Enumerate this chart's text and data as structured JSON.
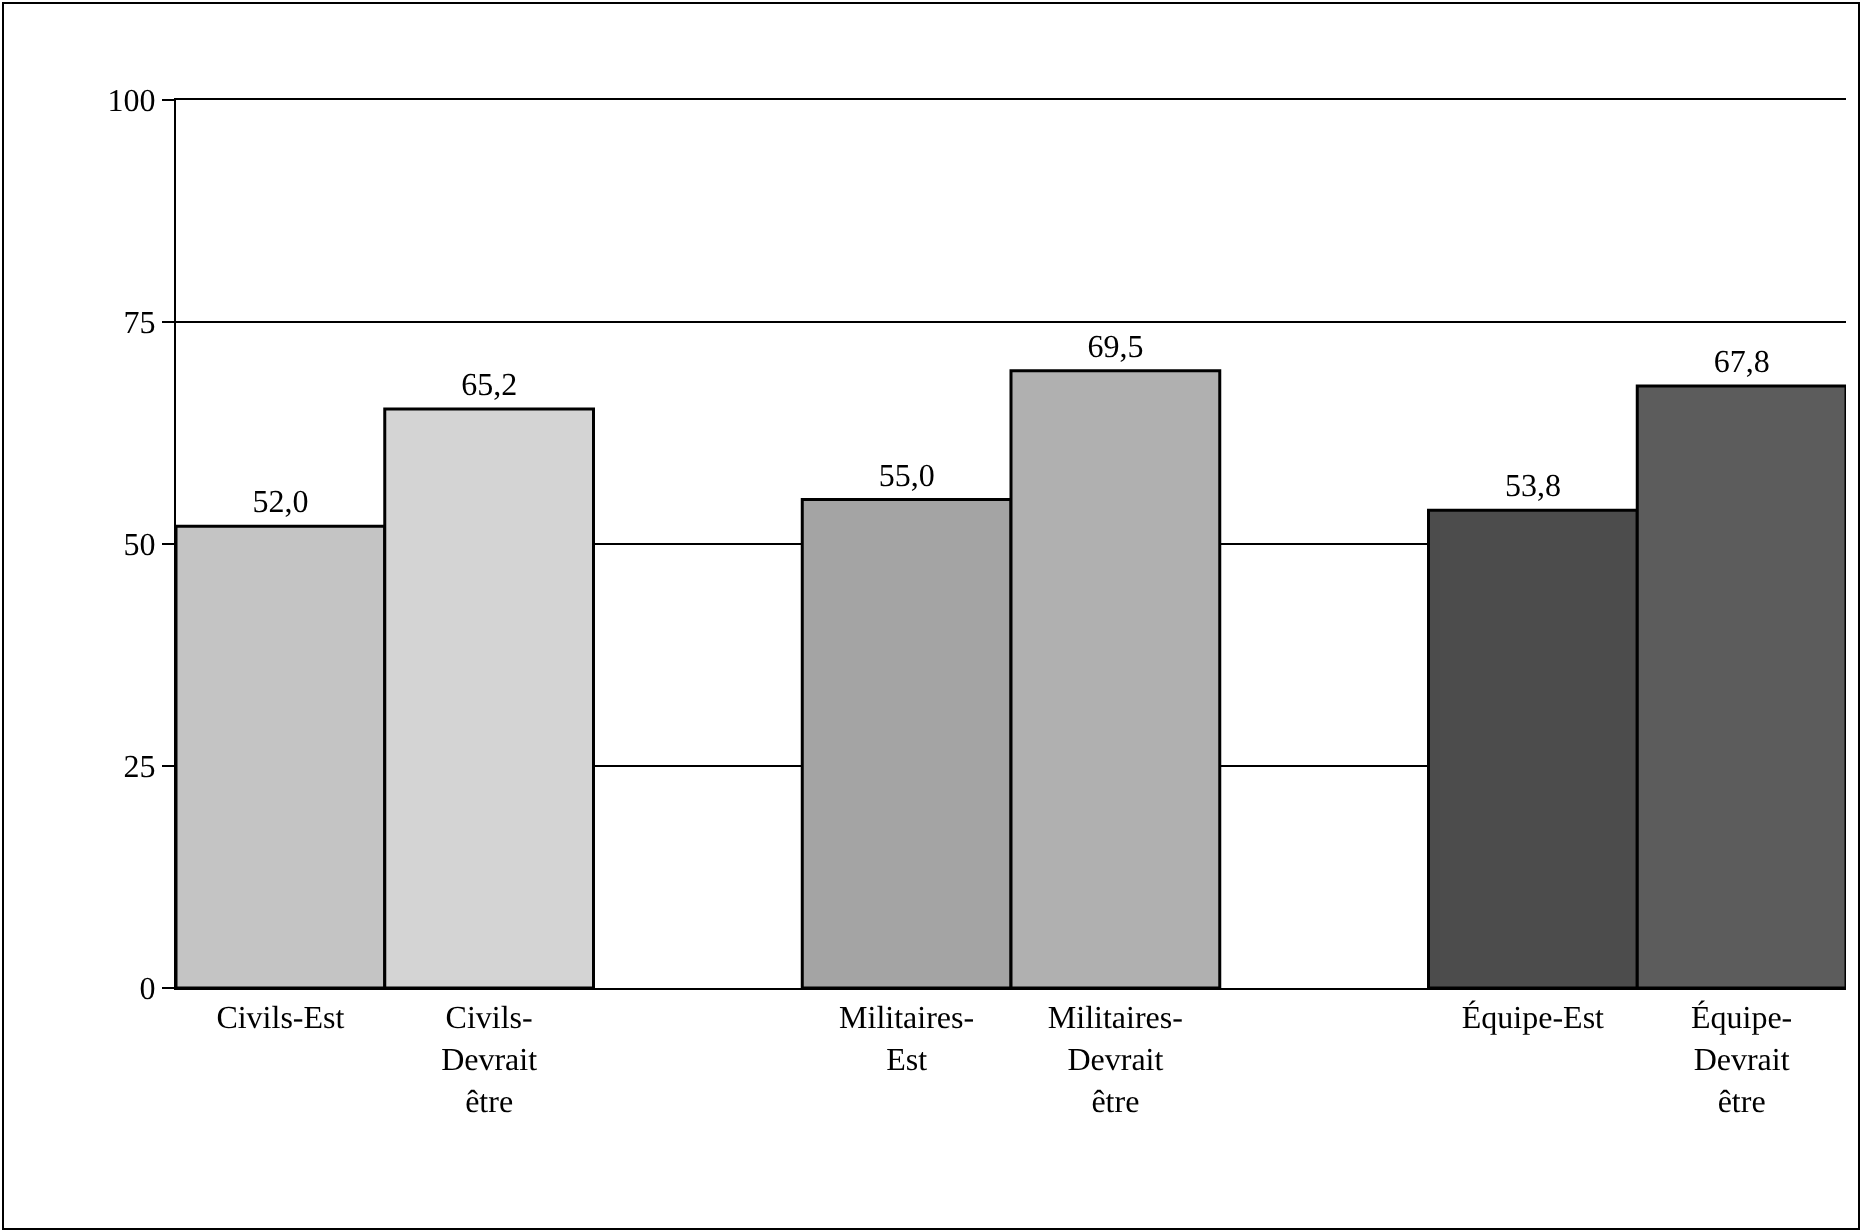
{
  "chart_data": {
    "type": "bar",
    "categories": [
      "Civils-Est",
      "Civils-Devrait être",
      null,
      "Militaires-Est",
      "Militaires-Devrait être",
      null,
      "Équipe-Est",
      "Équipe-Devrait être"
    ],
    "values": [
      52.0,
      65.2,
      null,
      55.0,
      69.5,
      null,
      53.8,
      67.8
    ],
    "value_labels": [
      "52,0",
      "65,2",
      null,
      "55,0",
      "69,5",
      null,
      "53,8",
      "67,8"
    ],
    "colors": [
      "#c4c4c4",
      "#d4d4d4",
      null,
      "#a4a4a4",
      "#b0b0b0",
      null,
      "#4c4c4c",
      "#5c5c5c"
    ],
    "ylim": [
      0,
      100
    ],
    "yticks": [
      0,
      25,
      50,
      75,
      100
    ],
    "grid": "y"
  }
}
